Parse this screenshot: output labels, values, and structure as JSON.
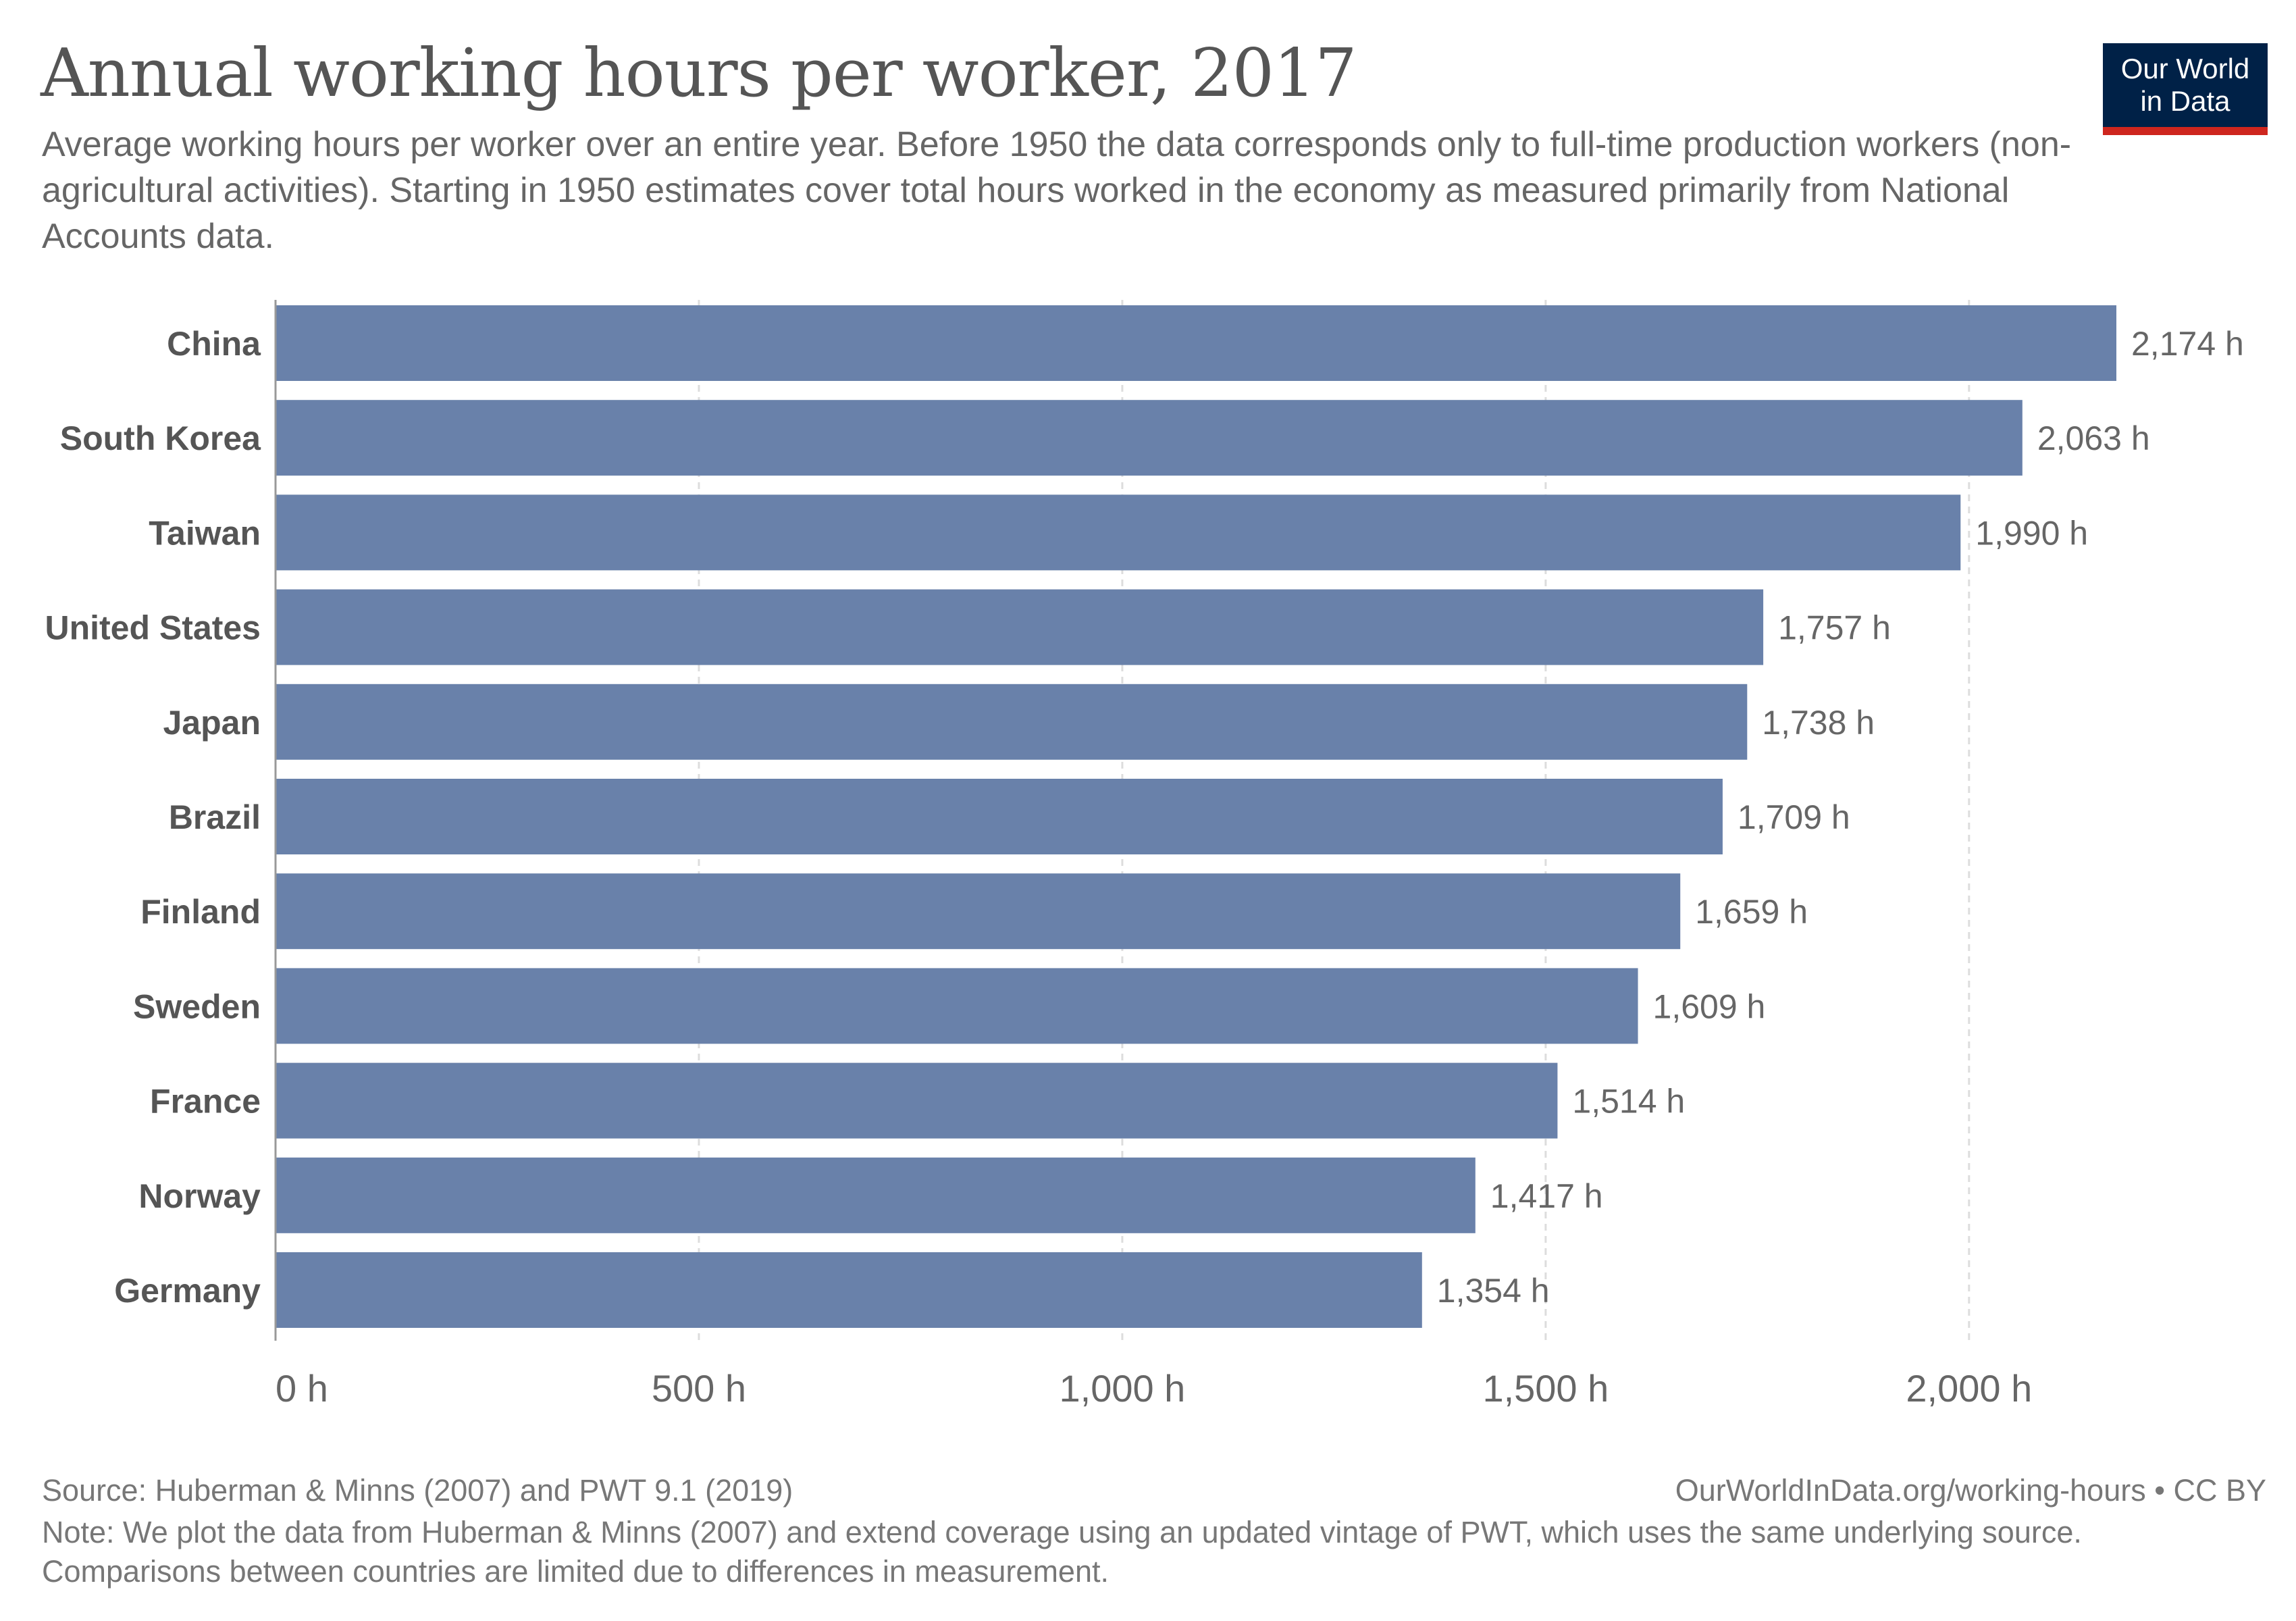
{
  "header": {
    "title": "Annual working hours per worker, 2017",
    "subtitle": "Average working hours per worker over an entire year. Before 1950 the data corresponds only to full-time production workers (non-agricultural activities). Starting in 1950 estimates cover total hours worked in the economy as measured primarily from National Accounts data.",
    "logo_text": "Our World\nin Data"
  },
  "colors": {
    "bar": "#6981aa",
    "grid": "#dddddd",
    "axis": "#999999",
    "category_label": "#555555",
    "value_label": "#666666",
    "logo_bg": "#002147",
    "logo_accent": "#ce261e"
  },
  "chart_data": {
    "type": "bar",
    "orientation": "horizontal",
    "categories": [
      "China",
      "South Korea",
      "Taiwan",
      "United States",
      "Japan",
      "Brazil",
      "Finland",
      "Sweden",
      "France",
      "Norway",
      "Germany"
    ],
    "values": [
      2174,
      2063,
      1990,
      1757,
      1738,
      1709,
      1659,
      1609,
      1514,
      1417,
      1354
    ],
    "value_labels": [
      "2,174 h",
      "2,063 h",
      "1,990 h",
      "1,757 h",
      "1,738 h",
      "1,709 h",
      "1,659 h",
      "1,609 h",
      "1,514 h",
      "1,417 h",
      "1,354 h"
    ],
    "xlim": [
      0,
      2174
    ],
    "xticks": [
      0,
      500,
      1000,
      1500,
      2000
    ],
    "xtick_labels": [
      "0 h",
      "500 h",
      "1,000 h",
      "1,500 h",
      "2,000 h"
    ],
    "grid": "vertical dashed"
  },
  "footer": {
    "source": "Source: Huberman & Minns (2007) and PWT 9.1 (2019)",
    "url": "OurWorldInData.org/working-hours • CC BY",
    "note": "Note: We plot the data from Huberman & Minns (2007) and extend coverage using an updated vintage of PWT, which uses the same underlying source. Comparisons between countries are limited due to differences in measurement."
  }
}
